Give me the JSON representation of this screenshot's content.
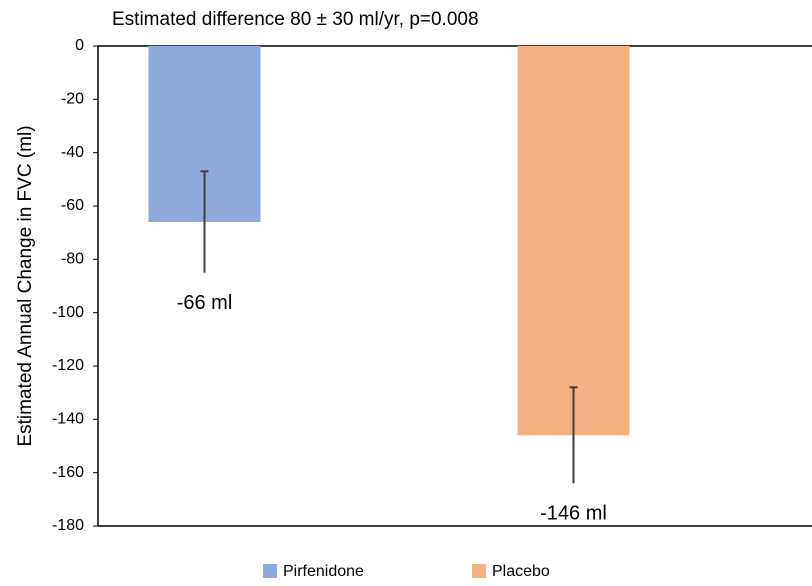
{
  "chart_data": {
    "type": "bar",
    "title": "Estimated difference 80 ± 30 ml/yr, p=0.008",
    "y_label": "Estimated Annual Change in FVC (ml)",
    "categories": [
      null
    ],
    "series": [
      {
        "name": "Pirfenidone",
        "color": "#8eaadb",
        "values": [
          -66
        ],
        "errors": [
          19
        ],
        "value_labels": [
          "-66 ml"
        ]
      },
      {
        "name": "Placebo",
        "color": "#f4b183",
        "values": [
          -146
        ],
        "errors": [
          18
        ],
        "value_labels": [
          "-146 ml"
        ]
      }
    ],
    "ylim": [
      -180,
      0
    ],
    "yticks": [
      0,
      -20,
      -40,
      -60,
      -80,
      -100,
      -120,
      -140,
      -160,
      -180
    ],
    "legend": "bottom"
  }
}
